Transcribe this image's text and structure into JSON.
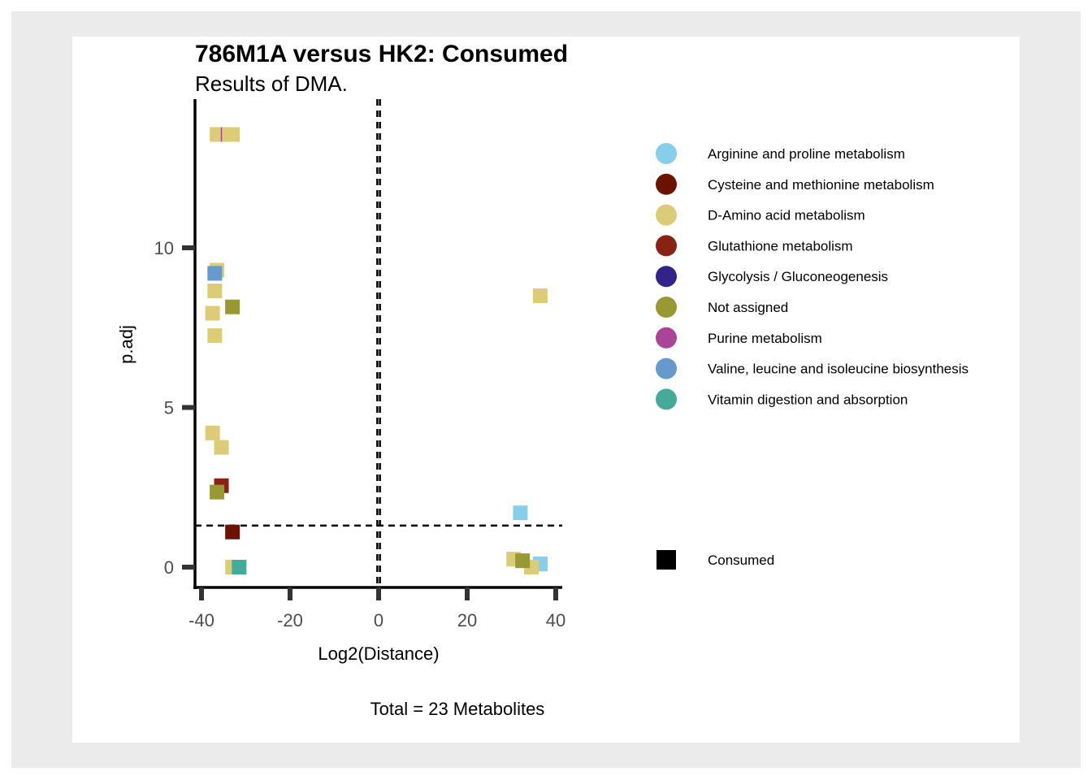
{
  "chart_data": {
    "type": "scatter",
    "title": "786M1A versus HK2: Consumed",
    "subtitle": "Results of DMA.",
    "xlabel": "Log2(Distance)",
    "ylabel": "p.adj",
    "caption": "Total = 23 Metabolites",
    "xlim": [
      -41,
      41
    ],
    "ylim": [
      -0.65,
      14.6
    ],
    "x_ticks": [
      -40,
      -20,
      0,
      20,
      40
    ],
    "x_tick_labels": [
      "-40",
      "-20",
      "0",
      "20",
      "40"
    ],
    "y_ticks": [
      0,
      5,
      10
    ],
    "y_tick_labels": [
      "0",
      "5",
      "10"
    ],
    "vlines": [
      -0.3,
      0.3
    ],
    "hline": 1.3,
    "legend_placement": "right",
    "legend_title": "",
    "series": [
      {
        "name": "Arginine and proline metabolism",
        "color": "#87ceeb",
        "points": [
          [
            32,
            1.7
          ],
          [
            36.5,
            0.1
          ]
        ]
      },
      {
        "name": "Cysteine and methionine metabolism",
        "color": "#6b1200",
        "points": [
          [
            -33,
            1.1
          ]
        ]
      },
      {
        "name": "D-Amino acid metabolism",
        "color": "#ddcc77",
        "points": [
          [
            -36.5,
            13.55
          ],
          [
            -34.5,
            13.55
          ],
          [
            -33,
            13.55
          ],
          [
            -36.5,
            9.3
          ],
          [
            -37,
            8.65
          ],
          [
            -37.5,
            7.95
          ],
          [
            -37,
            7.25
          ],
          [
            -37.5,
            4.2
          ],
          [
            -35.5,
            3.75
          ],
          [
            30.5,
            0.25
          ],
          [
            34.5,
            0.0
          ],
          [
            -33,
            0.0
          ],
          [
            36.5,
            8.5
          ]
        ]
      },
      {
        "name": "Glutathione metabolism",
        "color": "#882215",
        "points": [
          [
            -35.5,
            2.55
          ]
        ]
      },
      {
        "name": "Glycolysis / Gluconeogenesis",
        "color": "#332288",
        "points": []
      },
      {
        "name": "Not assigned",
        "color": "#999933",
        "points": [
          [
            -33,
            8.15
          ],
          [
            -36.5,
            2.35
          ],
          [
            32.5,
            0.2
          ]
        ]
      },
      {
        "name": "Purine metabolism",
        "color": "#aa4499",
        "points": [
          [
            -35.5,
            13.55
          ]
        ]
      },
      {
        "name": "Valine, leucine and isoleucine biosynthesis",
        "color": "#6699cc",
        "points": [
          [
            -37,
            9.2
          ]
        ]
      },
      {
        "name": "Vitamin digestion and absorption",
        "color": "#44aa99",
        "points": [
          [
            -31.5,
            0.0
          ]
        ]
      }
    ],
    "shape_legend": {
      "label": "Consumed",
      "color": "#000000"
    }
  }
}
